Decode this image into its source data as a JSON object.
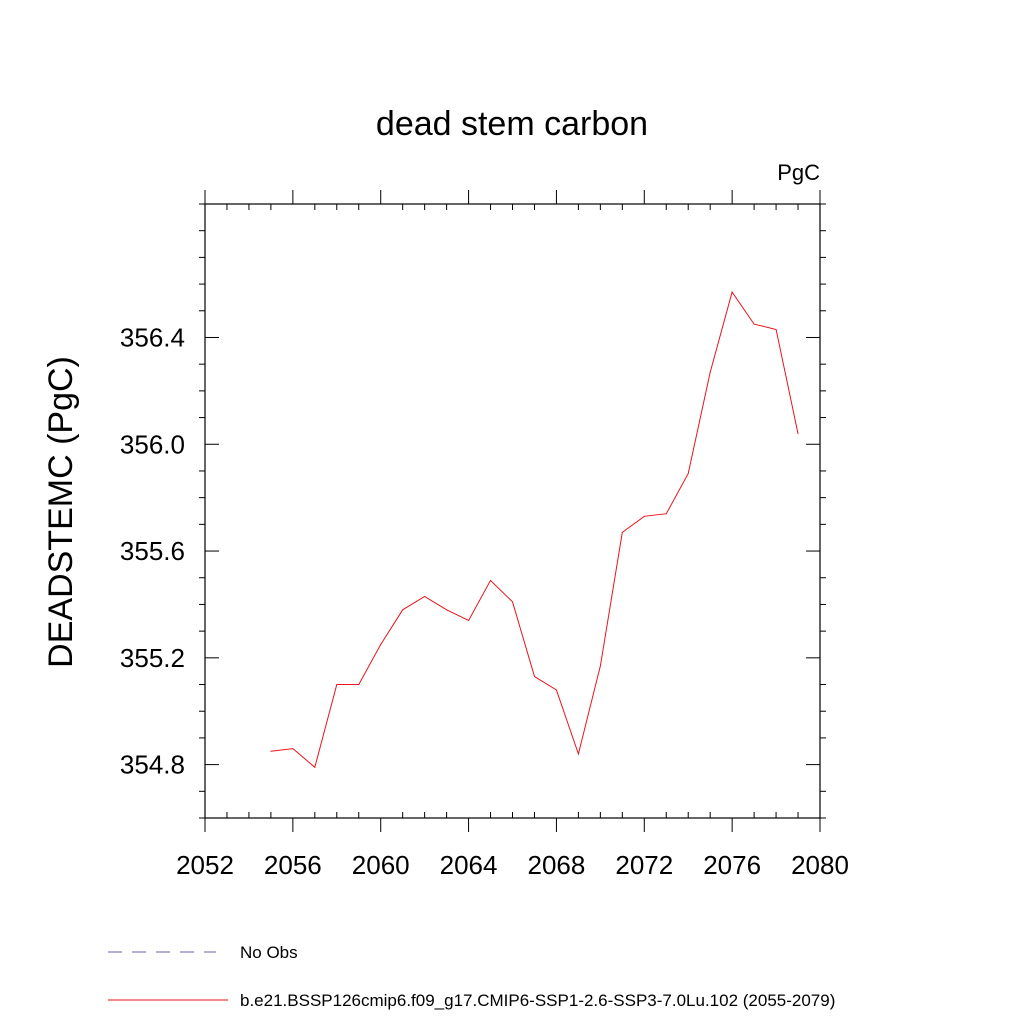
{
  "chart_data": {
    "type": "line",
    "title": "dead stem carbon",
    "units": "PgC",
    "ylabel": "DEADSTEMC  (PgC)",
    "xlabel": "",
    "xlim": [
      2052,
      2080
    ],
    "ylim": [
      354.6,
      356.9
    ],
    "x_ticks": [
      2052,
      2056,
      2060,
      2064,
      2068,
      2072,
      2076,
      2080
    ],
    "x_tick_labels": [
      "2052",
      "2056",
      "2060",
      "2064",
      "2068",
      "2072",
      "2076",
      "2080"
    ],
    "y_ticks": [
      354.8,
      355.2,
      355.6,
      356.0,
      356.4
    ],
    "y_tick_labels": [
      "354.8",
      "355.2",
      "355.6",
      "356.0",
      "356.4"
    ],
    "grid": false,
    "legend_position": "bottom",
    "series": [
      {
        "name": "b.e21.BSSP126cmip6.f09_g17.CMIP6-SSP1-2.6-SSP3-7.0Lu.102 (2055-2079)",
        "color": "#e8141c",
        "style": "solid",
        "x": [
          2055,
          2056,
          2057,
          2058,
          2059,
          2060,
          2061,
          2062,
          2063,
          2064,
          2065,
          2066,
          2067,
          2068,
          2069,
          2070,
          2071,
          2072,
          2073,
          2074,
          2075,
          2076,
          2077,
          2078,
          2079
        ],
        "values": [
          354.85,
          354.86,
          354.79,
          355.1,
          355.1,
          355.25,
          355.38,
          355.43,
          355.38,
          355.34,
          355.49,
          355.41,
          355.13,
          355.08,
          354.84,
          355.17,
          355.67,
          355.73,
          355.74,
          355.89,
          356.27,
          356.57,
          356.45,
          356.43,
          356.04
        ]
      },
      {
        "name": "No Obs",
        "color": "#6b5fa8",
        "style": "dashed",
        "x": [],
        "values": []
      }
    ]
  }
}
